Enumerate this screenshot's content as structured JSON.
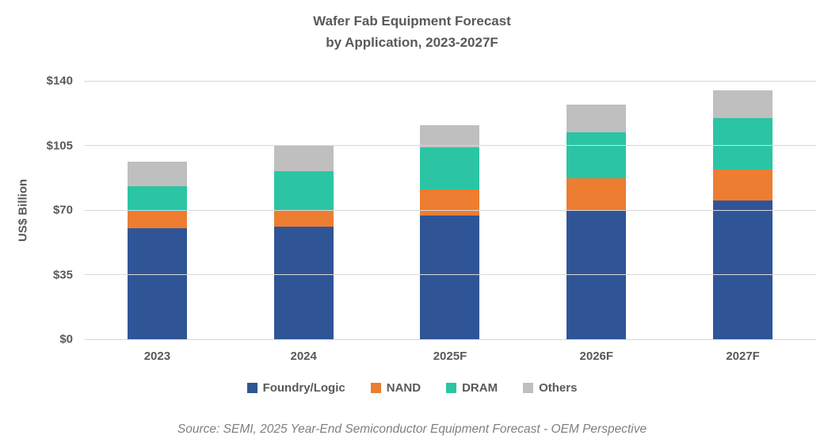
{
  "chart": {
    "title_line1": "Wafer Fab Equipment Forecast",
    "title_line2": "by Application, 2023-2027F",
    "source": "Source: SEMI, 2025 Year-End Semiconductor Equipment Forecast - OEM Perspective"
  },
  "chart_data": {
    "type": "bar",
    "stacked": true,
    "title": "Wafer Fab Equipment Forecast by Application, 2023-2027F",
    "xlabel": "",
    "ylabel": "US$ Billion",
    "ylim": [
      0,
      140
    ],
    "ytick_step": 35,
    "ytick_labels_bottom_to_top": [
      "$0",
      "$35",
      "$70",
      "$105",
      "$140"
    ],
    "grid": true,
    "legend_position": "bottom",
    "categories": [
      "2023",
      "2024",
      "2025F",
      "2026F",
      "2027F"
    ],
    "series": [
      {
        "name": "Foundry/Logic",
        "color": "#2F5597",
        "values": [
          60,
          61,
          67,
          70,
          75
        ]
      },
      {
        "name": "NAND",
        "color": "#ED7D31",
        "values": [
          9,
          9,
          14,
          17,
          17
        ]
      },
      {
        "name": "DRAM",
        "color": "#2BC5A4",
        "values": [
          14,
          21,
          23,
          25,
          28
        ]
      },
      {
        "name": "Others",
        "color": "#BFBFBF",
        "values": [
          13,
          14,
          12,
          15,
          15
        ]
      }
    ]
  },
  "colors": {
    "text": "#595959",
    "source_text": "#808080",
    "gridline": "#D9D9D9",
    "background": "#FFFFFF"
  }
}
